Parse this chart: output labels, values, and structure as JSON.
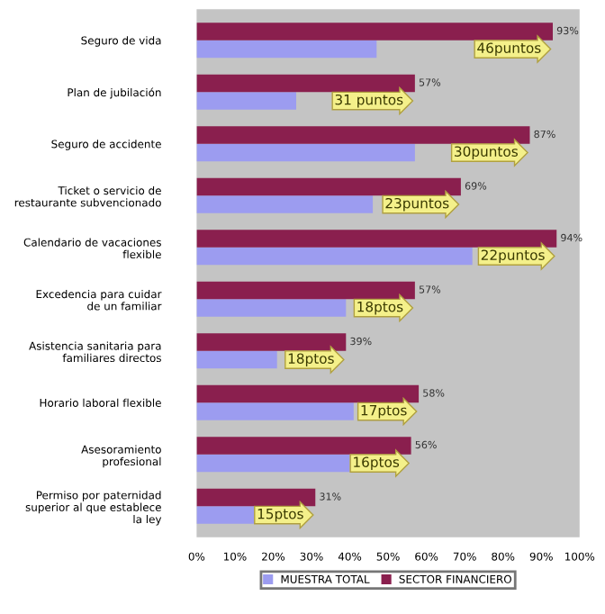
{
  "chart_data": {
    "type": "bar",
    "orientation": "horizontal",
    "categories": [
      "Seguro de vida",
      "Plan de jubilación",
      "Seguro de accidente",
      "Ticket o servicio de\nrestaurante subvencionado",
      "Calendario de vacaciones\nflexible",
      "Excedencia para cuidar\nde un familiar",
      "Asistencia sanitaria para\nfamiliares directos",
      "Horario laboral flexible",
      "Asesoramiento\nprofesional",
      "Permiso por paternidad\nsuperior al que establece\nla ley"
    ],
    "series": [
      {
        "name": "MUESTRA TOTAL",
        "color": "#9c9cf0",
        "values": [
          47,
          26,
          57,
          46,
          72,
          39,
          21,
          41,
          40,
          16
        ]
      },
      {
        "name": "SECTOR FINANCIERO",
        "color": "#8a1f4e",
        "values": [
          93,
          57,
          87,
          69,
          94,
          57,
          39,
          58,
          56,
          31
        ],
        "value_labels": [
          "93%",
          "57%",
          "87%",
          "69%",
          "94%",
          "57%",
          "39%",
          "58%",
          "56%",
          "31%"
        ]
      }
    ],
    "xlim": [
      0,
      100
    ],
    "xticks": [
      {
        "value": 0,
        "label": "0%"
      },
      {
        "value": 10,
        "label": "10%"
      },
      {
        "value": 20,
        "label": "20%"
      },
      {
        "value": 30,
        "label": "30%"
      },
      {
        "value": 40,
        "label": "40%"
      },
      {
        "value": 50,
        "label": "50%"
      },
      {
        "value": 60,
        "label": "60%"
      },
      {
        "value": 70,
        "label": "70%"
      },
      {
        "value": 80,
        "label": "80%"
      },
      {
        "value": 90,
        "label": "90%"
      },
      {
        "value": 100,
        "label": "100%"
      }
    ],
    "legend": "bottom",
    "grid": false,
    "annotations": [
      {
        "text": "46puntos",
        "x": 93,
        "y": "Seguro de vida"
      },
      {
        "text": "31 puntos",
        "x": 57,
        "y": "Plan de jubilación"
      },
      {
        "text": "30puntos",
        "x": 87,
        "y": "Seguro de accidente"
      },
      {
        "text": "23puntos",
        "x": 69,
        "y": "Ticket o servicio de\nrestaurante subvencionado"
      },
      {
        "text": "22puntos",
        "x": 94,
        "y": "Calendario de vacaciones\nflexible"
      },
      {
        "text": "18ptos",
        "x": 57,
        "y": "Excedencia para cuidar\nde un familiar"
      },
      {
        "text": "18ptos",
        "x": 39,
        "y": "Asistencia sanitaria para\nfamiliares directos"
      },
      {
        "text": "17ptos",
        "x": 58,
        "y": "Horario laboral flexible"
      },
      {
        "text": "16ptos",
        "x": 56,
        "y": "Asesoramiento\nprofesional"
      },
      {
        "text": "15ptos",
        "x": 31,
        "y": "Permiso por paternidad\nsuperior al que establece\nla ley"
      }
    ]
  }
}
